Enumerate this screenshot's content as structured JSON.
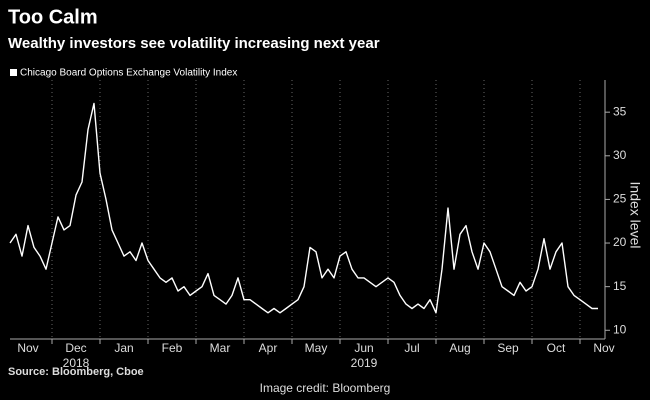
{
  "chart_data": {
    "type": "line",
    "title": "Too Calm",
    "subtitle": "Wealthy investors see volatility increasing next year",
    "y_label": "Index level",
    "source": "Source: Bloomberg, Cboe",
    "credit": "Image credit: Bloomberg",
    "ylim": [
      9,
      38
    ],
    "yticks": [
      10,
      15,
      20,
      25,
      30,
      35
    ],
    "xticks": [
      {
        "value": "2018-11",
        "label": "Nov"
      },
      {
        "value": "2018-12",
        "label": "Dec"
      },
      {
        "value": "2019-01",
        "label": "Jan"
      },
      {
        "value": "2019-02",
        "label": "Feb"
      },
      {
        "value": "2019-03",
        "label": "Mar"
      },
      {
        "value": "2019-04",
        "label": "Apr"
      },
      {
        "value": "2019-05",
        "label": "May"
      },
      {
        "value": "2019-06",
        "label": "Jun"
      },
      {
        "value": "2019-07",
        "label": "Jul"
      },
      {
        "value": "2019-08",
        "label": "Aug"
      },
      {
        "value": "2019-09",
        "label": "Sep"
      },
      {
        "value": "2019-10",
        "label": "Oct"
      },
      {
        "value": "2019-11",
        "label": "Nov"
      }
    ],
    "x_year_labels": [
      {
        "value": "2018-12",
        "label": "2018"
      },
      {
        "value": "2019-06",
        "label": "2019"
      }
    ],
    "grid": true,
    "x": [
      "2018-11",
      "2018-11",
      "2018-11",
      "2018-11",
      "2018-11",
      "2018-11",
      "2018-11",
      "2018-11",
      "2018-12",
      "2018-12",
      "2018-12",
      "2018-12",
      "2018-12",
      "2018-12",
      "2018-12",
      "2018-12",
      "2019-01",
      "2019-01",
      "2019-01",
      "2019-01",
      "2019-01",
      "2019-01",
      "2019-01",
      "2019-01",
      "2019-02",
      "2019-02",
      "2019-02",
      "2019-02",
      "2019-02",
      "2019-02",
      "2019-02",
      "2019-02",
      "2019-03",
      "2019-03",
      "2019-03",
      "2019-03",
      "2019-03",
      "2019-03",
      "2019-03",
      "2019-03",
      "2019-04",
      "2019-04",
      "2019-04",
      "2019-04",
      "2019-04",
      "2019-04",
      "2019-04",
      "2019-04",
      "2019-05",
      "2019-05",
      "2019-05",
      "2019-05",
      "2019-05",
      "2019-05",
      "2019-05",
      "2019-05",
      "2019-06",
      "2019-06",
      "2019-06",
      "2019-06",
      "2019-06",
      "2019-06",
      "2019-06",
      "2019-06",
      "2019-07",
      "2019-07",
      "2019-07",
      "2019-07",
      "2019-07",
      "2019-07",
      "2019-07",
      "2019-07",
      "2019-08",
      "2019-08",
      "2019-08",
      "2019-08",
      "2019-08",
      "2019-08",
      "2019-08",
      "2019-08",
      "2019-09",
      "2019-09",
      "2019-09",
      "2019-09",
      "2019-09",
      "2019-09",
      "2019-09",
      "2019-09",
      "2019-10",
      "2019-10",
      "2019-10",
      "2019-10",
      "2019-10",
      "2019-10",
      "2019-10",
      "2019-10",
      "2019-11",
      "2019-11",
      "2019-11"
    ],
    "series": [
      {
        "name": "Chicago Board Options Exchange Volatility Index",
        "color": "#ffffff",
        "values": [
          20,
          21,
          18.5,
          22,
          19.5,
          18.5,
          17,
          20,
          23,
          21.5,
          22,
          25.5,
          27,
          33,
          36,
          28,
          25,
          21.5,
          20,
          18.5,
          19,
          18,
          20,
          18,
          17,
          16,
          15.5,
          16,
          14.5,
          15,
          14,
          14.5,
          15,
          16.5,
          14,
          13.5,
          13,
          14,
          16,
          13.5,
          13.5,
          13,
          12.5,
          12,
          12.5,
          12,
          12.5,
          13,
          13.5,
          15,
          19.5,
          19,
          16,
          17,
          16,
          18.5,
          19,
          17,
          16,
          16,
          15.5,
          15,
          15.5,
          16,
          15.5,
          14,
          13,
          12.5,
          13,
          12.5,
          13.5,
          12,
          17,
          24,
          17,
          21,
          22,
          19,
          17,
          20,
          19,
          17,
          15,
          14.5,
          14,
          15.5,
          14.5,
          15,
          17,
          20.5,
          17,
          19,
          20,
          15,
          14,
          13.5,
          13,
          12.5,
          12.5
        ]
      }
    ]
  }
}
